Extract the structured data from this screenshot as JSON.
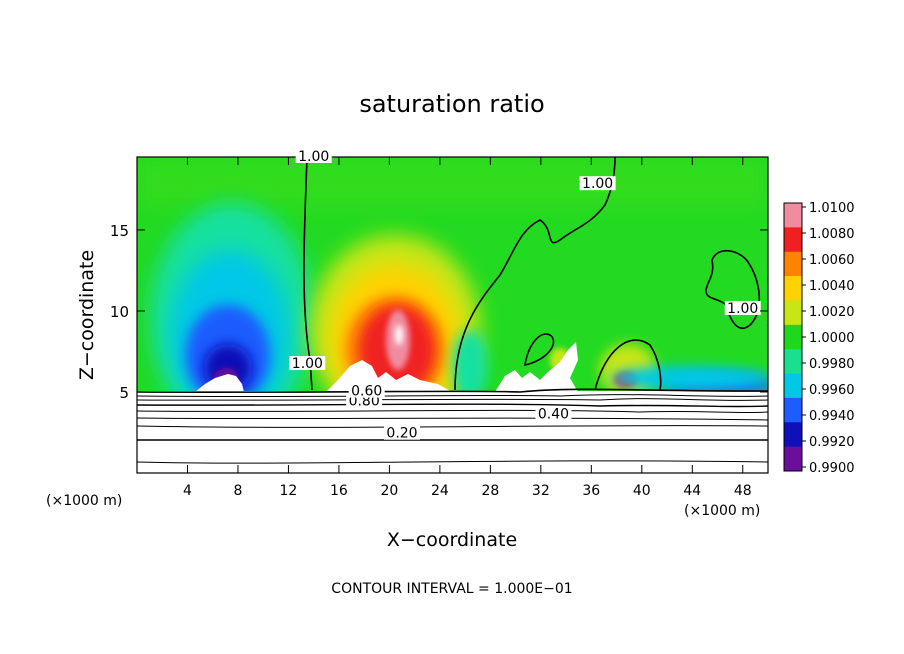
{
  "chart_data": {
    "type": "heatmap",
    "title": "saturation ratio",
    "xlabel": "X−coordinate",
    "ylabel": "Z−coordinate",
    "x_unit_label": "(×1000 m)",
    "y_unit_label": "(×1000 m)",
    "xlim": [
      0,
      50
    ],
    "ylim": [
      0,
      19.5
    ],
    "x_ticks": [
      4,
      8,
      12,
      16,
      20,
      24,
      28,
      32,
      36,
      40,
      44,
      48
    ],
    "y_ticks": [
      5,
      10,
      15
    ],
    "colorbar": {
      "levels": [
        0.99,
        0.992,
        0.994,
        0.996,
        0.998,
        1.0,
        1.002,
        1.004,
        1.006,
        1.008,
        1.01
      ],
      "labels": [
        "0.9900",
        "0.9920",
        "0.9940",
        "0.9960",
        "0.9980",
        "1.0000",
        "1.0020",
        "1.0040",
        "1.0060",
        "1.0080",
        "1.0100"
      ],
      "colors": [
        "#6a0f9a",
        "#1010b8",
        "#1e5cff",
        "#00c8e6",
        "#18e090",
        "#1ed81e",
        "#c8e614",
        "#ffd200",
        "#ff8200",
        "#f02020",
        "#f08ca0"
      ]
    },
    "contour_labels": [
      {
        "text": "0.20",
        "x": 21,
        "z": 2.3
      },
      {
        "text": "0.40",
        "x": 33,
        "z": 3.5
      },
      {
        "text": "0.80",
        "x": 18,
        "z": 4.3
      },
      {
        "text": "0.60",
        "x": 18.2,
        "z": 4.9
      },
      {
        "text": "1.00",
        "x": 13.5,
        "z": 6.6
      },
      {
        "text": "1.00",
        "x": 36.5,
        "z": 17.7
      },
      {
        "text": "1.00",
        "x": 48,
        "z": 10
      },
      {
        "text": "1.00",
        "x": 14,
        "z": 19.8
      }
    ],
    "contour_interval_text": "CONTOUR INTERVAL = 1.000E−01",
    "grid": false,
    "legend": "right"
  }
}
